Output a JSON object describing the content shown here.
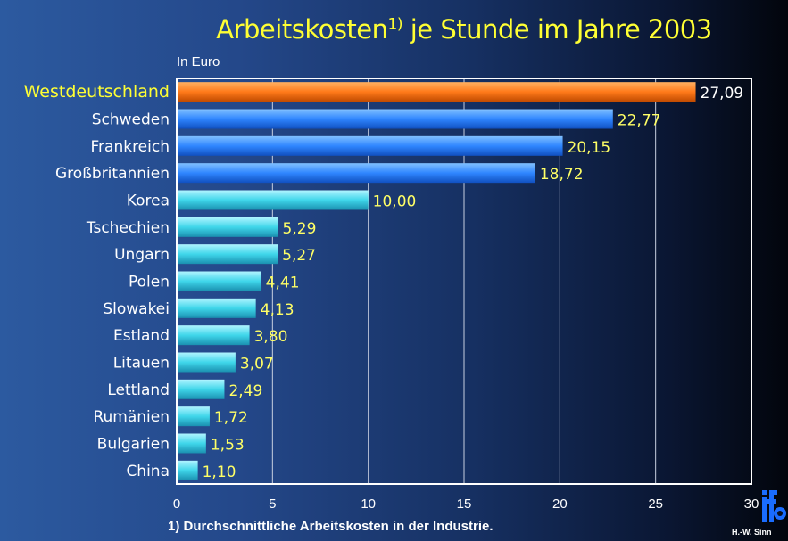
{
  "chart_data": {
    "type": "bar",
    "orientation": "horizontal",
    "title": "Arbeitskosten",
    "title_superscript": "1)",
    "title_rest": "je Stunde im Jahre 2003",
    "unit_label": "In Euro",
    "footnote": "1) Durchschnittliche Arbeitskosten in der Industrie.",
    "categories": [
      "Westdeutschland",
      "Schweden",
      "Frankreich",
      "Großbritannien",
      "Korea",
      "Tschechien",
      "Ungarn",
      "Polen",
      "Slowakei",
      "Estland",
      "Litauen",
      "Lettland",
      "Rumänien",
      "Bulgarien",
      "China"
    ],
    "values": [
      27.09,
      22.77,
      20.15,
      18.72,
      10.0,
      5.29,
      5.27,
      4.41,
      4.13,
      3.8,
      3.07,
      2.49,
      1.72,
      1.53,
      1.1
    ],
    "value_labels": [
      "27,09",
      "22,77",
      "20,15",
      "18,72",
      "10,00",
      "5,29",
      "5,27",
      "4,41",
      "4,13",
      "3,80",
      "3,07",
      "2,49",
      "1,72",
      "1,53",
      "1,10"
    ],
    "bar_groups": [
      "highlight",
      "blue",
      "blue",
      "blue",
      "cyan",
      "cyan",
      "cyan",
      "cyan",
      "cyan",
      "cyan",
      "cyan",
      "cyan",
      "cyan",
      "cyan",
      "cyan"
    ],
    "xlim": [
      0,
      30
    ],
    "xticks": [
      0,
      5,
      10,
      15,
      20,
      25,
      30
    ],
    "grid": true,
    "colors": {
      "highlight": "#ff7a1a",
      "blue": "#2f86ff",
      "cyan": "#3fd6ea",
      "title": "#ffff33",
      "value": "#ffff66"
    }
  },
  "logo": {
    "text": "ifo",
    "author": "H.-W. Sinn"
  }
}
